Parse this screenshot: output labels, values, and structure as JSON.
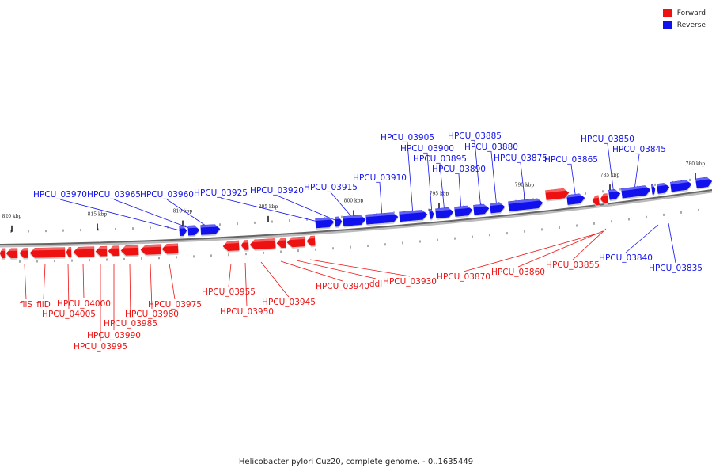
{
  "legend": {
    "forward_label": "Forward",
    "reverse_label": "Reverse",
    "forward_color": "#ee1111",
    "reverse_color": "#1111ee"
  },
  "caption": "Helicobacter pylori Cuz20, complete genome. - 0..1635449",
  "kbp_markers": [
    {
      "label": "820 kbp",
      "pos_kbp": 820
    },
    {
      "label": "815 kbp",
      "pos_kbp": 815
    },
    {
      "label": "810 kbp",
      "pos_kbp": 810
    },
    {
      "label": "805 kbp",
      "pos_kbp": 805
    },
    {
      "label": "800 kbp",
      "pos_kbp": 800
    },
    {
      "label": "795 kbp",
      "pos_kbp": 795
    },
    {
      "label": "790 kbp",
      "pos_kbp": 790
    },
    {
      "label": "785 kbp",
      "pos_kbp": 785
    },
    {
      "label": "780 kbp",
      "pos_kbp": 780
    }
  ],
  "reverse_genes": [
    "HPCU_03970",
    "HPCU_03965",
    "HPCU_03960",
    "HPCU_03925",
    "HPCU_03920",
    "HPCU_03915",
    "HPCU_03910",
    "HPCU_03905",
    "HPCU_03900",
    "HPCU_03895",
    "HPCU_03890",
    "HPCU_03885",
    "HPCU_03880",
    "HPCU_03875",
    "HPCU_03865",
    "HPCU_03850",
    "HPCU_03845",
    "HPCU_03840",
    "HPCU_03835"
  ],
  "forward_genes": [
    "fliS",
    "fliD",
    "HPCU_04000",
    "HPCU_04005",
    "HPCU_03995",
    "HPCU_03990",
    "HPCU_03985",
    "HPCU_03980",
    "HPCU_03975",
    "HPCU_03955",
    "HPCU_03950",
    "HPCU_03945",
    "HPCU_03940",
    "ddl",
    "HPCU_03930",
    "HPCU_03870",
    "HPCU_03860",
    "HPCU_03855"
  ]
}
